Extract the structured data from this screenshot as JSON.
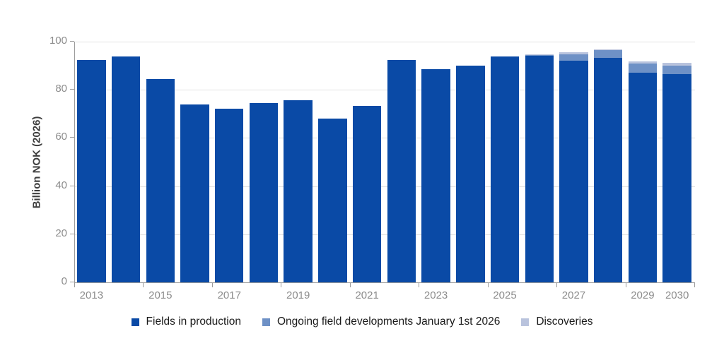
{
  "chart_data": {
    "type": "bar",
    "stacked": true,
    "title": "",
    "xlabel": "",
    "ylabel": "Billion NOK (2026)",
    "ylim": [
      0,
      100
    ],
    "yticks": [
      0,
      20,
      40,
      60,
      80,
      100
    ],
    "grid": "horizontal",
    "legend_position": "bottom",
    "categories": [
      "2013",
      "2014",
      "2015",
      "2016",
      "2017",
      "2018",
      "2019",
      "2020",
      "2021",
      "2022",
      "2023",
      "2024",
      "2025",
      "2026",
      "2027",
      "2028",
      "2029",
      "2030"
    ],
    "series": [
      {
        "name": "Fields in production",
        "color": "#0a4aa6",
        "values": [
          92.5,
          93.7,
          84.5,
          74,
          72,
          74.5,
          75.8,
          68,
          73.3,
          92.5,
          88.6,
          90,
          93.7,
          94.1,
          92.1,
          93.2,
          87.2,
          86.5
        ]
      },
      {
        "name": "Ongoing field developments January 1st 2026",
        "color": "#6e91c6",
        "values": [
          0,
          0,
          0,
          0,
          0,
          0,
          0,
          0,
          0,
          0,
          0,
          0,
          0,
          0.4,
          2.6,
          3.4,
          3.6,
          3.4
        ]
      },
      {
        "name": "Discoveries",
        "color": "#b9c3dd",
        "values": [
          0,
          0,
          0,
          0,
          0,
          0,
          0,
          0,
          0,
          0,
          0,
          0,
          0,
          0.2,
          0.8,
          0.2,
          1.0,
          1.2
        ]
      }
    ],
    "x_tick_labels": [
      {
        "category_index": 0,
        "label": "2013"
      },
      {
        "category_index": 2,
        "label": "2015"
      },
      {
        "category_index": 4,
        "label": "2017"
      },
      {
        "category_index": 6,
        "label": "2019"
      },
      {
        "category_index": 8,
        "label": "2021"
      },
      {
        "category_index": 10,
        "label": "2023"
      },
      {
        "category_index": 12,
        "label": "2025"
      },
      {
        "category_index": 14,
        "label": "2027"
      },
      {
        "category_index": 16,
        "label": "2029"
      },
      {
        "category_index": 17,
        "label": "2030"
      }
    ],
    "x_boundary_ticks_every_categories": 2,
    "colors": {
      "background": "#ffffff",
      "gridline": "#e2e2e2",
      "axis_line": "#9b9b9b",
      "tick_text": "#8c8c8c",
      "axis_title_text": "#3d3d3d",
      "legend_text": "#1a1a1a"
    }
  }
}
